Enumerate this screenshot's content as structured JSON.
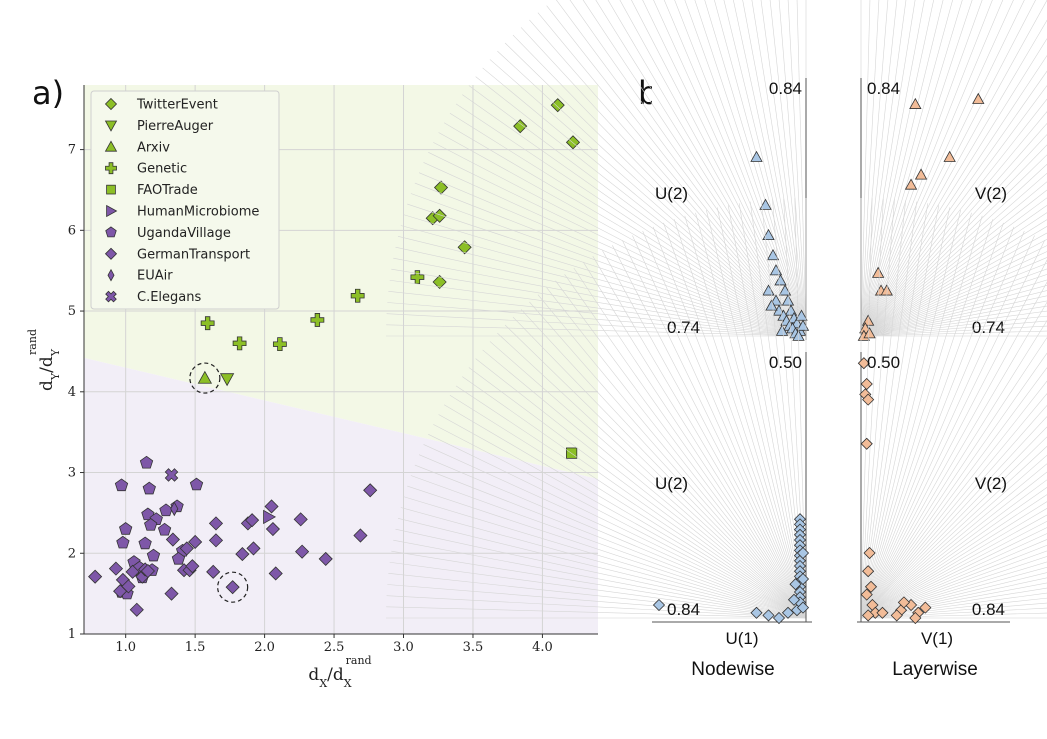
{
  "chart_data": [
    {
      "type": "scatter",
      "panel_label": "a)",
      "xlabel": "d_X/d_X^rand",
      "ylabel": "d_Y/d_Y^rand",
      "xlim": [
        0.7,
        4.4
      ],
      "ylim": [
        1.0,
        7.8
      ],
      "xticks": [
        "1.0",
        "1.5",
        "2.0",
        "2.5",
        "3.0",
        "3.5",
        "4.0"
      ],
      "yticks": [
        "1",
        "2",
        "3",
        "4",
        "5",
        "6",
        "7"
      ],
      "grid": true,
      "legend_position": "top-left",
      "boundary": [
        [
          0.7,
          4.42
        ],
        [
          4.4,
          2.92
        ]
      ],
      "regions": {
        "upper_color": "#f3f8e6",
        "lower_color": "#f2eef7"
      },
      "highlight_circles": [
        [
          1.57,
          4.17
        ],
        [
          1.77,
          1.58
        ]
      ],
      "series": [
        {
          "name": "TwitterEvent",
          "marker": "diamond",
          "color": "#8cbf26",
          "points": [
            [
              3.84,
              7.29
            ],
            [
              4.11,
              7.55
            ],
            [
              4.22,
              7.09
            ],
            [
              3.27,
              6.53
            ],
            [
              3.21,
              6.15
            ],
            [
              3.26,
              6.18
            ],
            [
              3.44,
              5.79
            ],
            [
              3.26,
              5.36
            ]
          ]
        },
        {
          "name": "PierreAuger",
          "marker": "triangle-down",
          "color": "#8cbf26",
          "points": [
            [
              1.73,
              4.16
            ]
          ]
        },
        {
          "name": "Arxiv",
          "marker": "triangle-up",
          "color": "#8cbf26",
          "points": [
            [
              1.57,
              4.17
            ]
          ]
        },
        {
          "name": "Genetic",
          "marker": "plus",
          "color": "#8cbf26",
          "points": [
            [
              1.59,
              4.85
            ],
            [
              1.82,
              4.6
            ],
            [
              2.11,
              4.59
            ],
            [
              2.38,
              4.89
            ],
            [
              2.67,
              5.19
            ],
            [
              3.1,
              5.42
            ]
          ]
        },
        {
          "name": "FAOTrade",
          "marker": "square",
          "color": "#8cbf26",
          "points": [
            [
              4.21,
              3.24
            ]
          ]
        },
        {
          "name": "HumanMicrobiome",
          "marker": "triangle-right",
          "color": "#7e57a8",
          "points": [
            [
              2.03,
              2.45
            ]
          ]
        },
        {
          "name": "UgandaVillage",
          "marker": "pentagon",
          "color": "#7e57a8",
          "points": [
            [
              0.97,
              2.84
            ],
            [
              1.15,
              3.12
            ],
            [
              1.17,
              2.8
            ],
            [
              1.51,
              2.85
            ],
            [
              1.29,
              2.53
            ],
            [
              1.37,
              2.58
            ],
            [
              1.16,
              2.48
            ],
            [
              1.22,
              2.42
            ],
            [
              1.18,
              2.35
            ],
            [
              1.0,
              2.3
            ],
            [
              1.28,
              2.29
            ],
            [
              0.98,
              2.13
            ],
            [
              1.14,
              2.12
            ],
            [
              1.41,
              2.03
            ],
            [
              1.2,
              1.97
            ],
            [
              1.38,
              1.93
            ],
            [
              1.06,
              1.89
            ],
            [
              1.1,
              1.82
            ],
            [
              1.19,
              1.79
            ],
            [
              1.12,
              1.7
            ],
            [
              0.97,
              1.52
            ],
            [
              1.01,
              1.5
            ]
          ]
        },
        {
          "name": "GermanTransport",
          "marker": "diamond",
          "color": "#7e57a8",
          "points": [
            [
              0.78,
              1.71
            ],
            [
              0.93,
              1.81
            ],
            [
              0.96,
              1.53
            ],
            [
              0.98,
              1.67
            ],
            [
              1.02,
              1.59
            ],
            [
              1.05,
              1.77
            ],
            [
              1.08,
              1.3
            ],
            [
              1.12,
              1.71
            ],
            [
              1.14,
              1.8
            ],
            [
              1.16,
              1.78
            ],
            [
              1.33,
              1.5
            ],
            [
              1.34,
              2.17
            ],
            [
              1.42,
              1.79
            ],
            [
              1.44,
              2.06
            ],
            [
              1.46,
              1.79
            ],
            [
              1.48,
              1.84
            ],
            [
              1.5,
              2.14
            ],
            [
              1.63,
              1.77
            ],
            [
              1.65,
              2.16
            ],
            [
              1.65,
              2.37
            ],
            [
              1.77,
              1.58
            ],
            [
              1.84,
              1.99
            ],
            [
              1.88,
              2.37
            ],
            [
              1.91,
              2.41
            ],
            [
              1.92,
              2.06
            ],
            [
              2.05,
              2.58
            ],
            [
              2.06,
              2.3
            ],
            [
              2.08,
              1.75
            ],
            [
              2.26,
              2.42
            ],
            [
              2.27,
              2.02
            ],
            [
              2.44,
              1.93
            ],
            [
              2.69,
              2.22
            ],
            [
              2.76,
              2.78
            ]
          ]
        },
        {
          "name": "EUAir",
          "marker": "thin-diamond",
          "color": "#7e57a8",
          "points": [
            [
              1.35,
              2.55
            ]
          ]
        },
        {
          "name": "C.Elegans",
          "marker": "x",
          "color": "#7e57a8",
          "points": [
            [
              1.33,
              2.97
            ]
          ]
        }
      ]
    },
    {
      "type": "scatter",
      "panel_label": "b)",
      "panels": [
        {
          "id": "top-left",
          "corner_label": "0.84",
          "base_label": "0.74",
          "side_label": "U(2)",
          "marker": "triangle",
          "color": "#a9c6e4",
          "points": [
            [
              -0.33,
              0.71
            ],
            [
              -0.27,
              0.52
            ],
            [
              -0.25,
              0.4
            ],
            [
              -0.22,
              0.32
            ],
            [
              -0.2,
              0.26
            ],
            [
              -0.17,
              0.22
            ],
            [
              -0.14,
              0.18
            ],
            [
              -0.12,
              0.14
            ],
            [
              -0.1,
              0.1
            ],
            [
              -0.08,
              0.07
            ],
            [
              -0.06,
              0.05
            ],
            [
              -0.04,
              0.02
            ],
            [
              -0.2,
              0.14
            ],
            [
              -0.18,
              0.1
            ],
            [
              -0.15,
              0.08
            ],
            [
              -0.13,
              0.06
            ],
            [
              -0.11,
              0.04
            ],
            [
              -0.09,
              0.03
            ],
            [
              -0.07,
              0.01
            ],
            [
              -0.05,
              0.0
            ],
            [
              -0.25,
              0.18
            ],
            [
              -0.23,
              0.12
            ],
            [
              -0.03,
              0.08
            ],
            [
              -0.02,
              0.04
            ],
            [
              -0.16,
              0.02
            ]
          ]
        },
        {
          "id": "top-right",
          "corner_label": "0.84",
          "base_label": "0.74",
          "side_label": "V(2)",
          "marker": "triangle",
          "color": "#f2bc98",
          "points": [
            [
              0.38,
              0.92
            ],
            [
              0.82,
              0.94
            ],
            [
              0.62,
              0.71
            ],
            [
              0.35,
              0.6
            ],
            [
              0.42,
              0.64
            ],
            [
              0.12,
              0.25
            ],
            [
              0.14,
              0.18
            ],
            [
              0.18,
              0.18
            ],
            [
              0.05,
              0.06
            ],
            [
              0.03,
              0.03
            ],
            [
              0.02,
              0.0
            ],
            [
              0.06,
              0.01
            ]
          ]
        },
        {
          "id": "bottom-left",
          "corner_label": "0.50",
          "base_label": "0.84",
          "side_label": "U(2)",
          "axis_label": "U(1)",
          "marker": "diamond",
          "color": "#a9c6e4",
          "points": [
            [
              -0.98,
              0.05
            ],
            [
              -0.33,
              0.02
            ],
            [
              -0.25,
              0.01
            ],
            [
              -0.18,
              0.0
            ],
            [
              -0.12,
              0.02
            ],
            [
              -0.06,
              0.03
            ],
            [
              -0.04,
              0.38
            ],
            [
              -0.04,
              0.36
            ],
            [
              -0.04,
              0.34
            ],
            [
              -0.04,
              0.32
            ],
            [
              -0.04,
              0.3
            ],
            [
              -0.04,
              0.28
            ],
            [
              -0.04,
              0.26
            ],
            [
              -0.04,
              0.24
            ],
            [
              -0.04,
              0.22
            ],
            [
              -0.04,
              0.2
            ],
            [
              -0.04,
              0.18
            ],
            [
              -0.04,
              0.16
            ],
            [
              -0.04,
              0.14
            ],
            [
              -0.04,
              0.12
            ],
            [
              -0.04,
              0.1
            ],
            [
              -0.04,
              0.08
            ],
            [
              -0.04,
              0.06
            ],
            [
              -0.02,
              0.04
            ],
            [
              -0.02,
              0.15
            ],
            [
              -0.02,
              0.25
            ],
            [
              -0.08,
              0.07
            ],
            [
              -0.07,
              0.13
            ]
          ]
        },
        {
          "id": "bottom-right",
          "corner_label": "0.50",
          "base_label": "0.84",
          "side_label": "V(2)",
          "axis_label": "V(1)",
          "marker": "diamond",
          "color": "#f2bc98",
          "points": [
            [
              0.02,
              0.98
            ],
            [
              0.04,
              0.9
            ],
            [
              0.03,
              0.86
            ],
            [
              0.05,
              0.84
            ],
            [
              0.04,
              0.67
            ],
            [
              0.06,
              0.25
            ],
            [
              0.05,
              0.18
            ],
            [
              0.07,
              0.12
            ],
            [
              0.04,
              0.09
            ],
            [
              0.08,
              0.05
            ],
            [
              0.1,
              0.02
            ],
            [
              0.05,
              0.01
            ],
            [
              0.15,
              0.02
            ],
            [
              0.28,
              0.03
            ],
            [
              0.35,
              0.05
            ],
            [
              0.4,
              0.02
            ],
            [
              0.45,
              0.04
            ],
            [
              0.38,
              0.0
            ],
            [
              0.25,
              0.01
            ],
            [
              0.3,
              0.06
            ]
          ]
        }
      ],
      "footer": {
        "left": "Nodewise",
        "right": "Layerwise"
      }
    }
  ]
}
